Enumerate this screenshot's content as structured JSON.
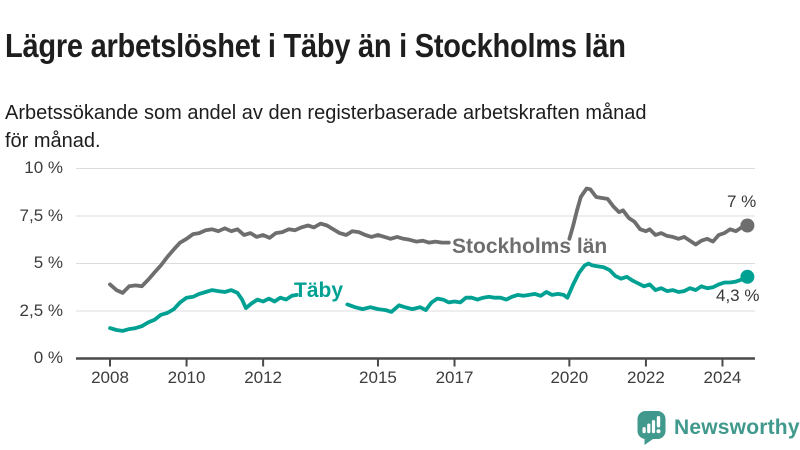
{
  "header": {
    "title": "Lägre arbetslöshet i Täby än i Stockholms län",
    "subtitle": "Arbetssökande som andel av den registerbaserade arbetskraften månad för månad.",
    "subtitle_lines": [
      "Arbetssökande som andel av den registerbaserade arbetskraften månad",
      "för månad."
    ]
  },
  "colors": {
    "taby_line": "#00a193",
    "stockholm_line": "#6e6e6e",
    "grid": "#dcdcdc",
    "axis": "#4a4a4a",
    "tick_text": "#3d3d3d",
    "end_label_text": "#383838",
    "title_text": "#1e1e1e",
    "brand_teal": "#41998d"
  },
  "chart_data": {
    "type": "line",
    "title": "Lägre arbetslöshet i Täby än i Stockholms län",
    "xlabel": "",
    "ylabel": "",
    "unit": "%",
    "grid": true,
    "ylim": [
      0,
      10
    ],
    "xlim": [
      2007.9,
      2025.1
    ],
    "y_ticks": [
      {
        "value": 10,
        "label": "10 %"
      },
      {
        "value": 7.5,
        "label": "7,5 %"
      },
      {
        "value": 5,
        "label": "5 %"
      },
      {
        "value": 2.5,
        "label": "2,5 %"
      },
      {
        "value": 0,
        "label": "0 %"
      }
    ],
    "x_ticks": [
      {
        "value": 2008,
        "label": "2008"
      },
      {
        "value": 2010,
        "label": "2010"
      },
      {
        "value": 2012,
        "label": "2012"
      },
      {
        "value": 2015,
        "label": "2015"
      },
      {
        "value": 2017,
        "label": "2017"
      },
      {
        "value": 2020,
        "label": "2020"
      },
      {
        "value": 2022,
        "label": "2022"
      },
      {
        "value": 2024,
        "label": "2024"
      }
    ],
    "series": [
      {
        "id": "stockholm",
        "name": "Stockholms län",
        "color": "#6e6e6e",
        "end_label": "7 %",
        "end_value": 7.0,
        "segments": [
          [
            [
              2008.0,
              3.9
            ],
            [
              2008.17,
              3.6
            ],
            [
              2008.33,
              3.45
            ],
            [
              2008.5,
              3.8
            ],
            [
              2008.67,
              3.85
            ],
            [
              2008.83,
              3.8
            ],
            [
              2009.0,
              4.15
            ],
            [
              2009.17,
              4.55
            ],
            [
              2009.33,
              4.9
            ],
            [
              2009.5,
              5.35
            ],
            [
              2009.67,
              5.75
            ],
            [
              2009.83,
              6.1
            ],
            [
              2010.0,
              6.3
            ],
            [
              2010.17,
              6.55
            ],
            [
              2010.33,
              6.6
            ],
            [
              2010.5,
              6.75
            ],
            [
              2010.67,
              6.8
            ],
            [
              2010.83,
              6.7
            ],
            [
              2011.0,
              6.85
            ],
            [
              2011.17,
              6.7
            ],
            [
              2011.33,
              6.8
            ],
            [
              2011.5,
              6.5
            ],
            [
              2011.67,
              6.6
            ],
            [
              2011.83,
              6.4
            ],
            [
              2012.0,
              6.5
            ],
            [
              2012.17,
              6.35
            ],
            [
              2012.33,
              6.6
            ],
            [
              2012.5,
              6.65
            ],
            [
              2012.67,
              6.8
            ],
            [
              2012.83,
              6.75
            ],
            [
              2013.0,
              6.9
            ],
            [
              2013.17,
              7.0
            ],
            [
              2013.33,
              6.9
            ],
            [
              2013.5,
              7.1
            ],
            [
              2013.67,
              7.0
            ],
            [
              2013.83,
              6.8
            ],
            [
              2014.0,
              6.6
            ],
            [
              2014.17,
              6.5
            ],
            [
              2014.33,
              6.7
            ],
            [
              2014.5,
              6.65
            ],
            [
              2014.67,
              6.5
            ],
            [
              2014.83,
              6.4
            ],
            [
              2015.0,
              6.5
            ],
            [
              2015.17,
              6.4
            ],
            [
              2015.33,
              6.3
            ],
            [
              2015.5,
              6.4
            ],
            [
              2015.67,
              6.3
            ],
            [
              2015.83,
              6.25
            ],
            [
              2016.0,
              6.15
            ],
            [
              2016.17,
              6.2
            ],
            [
              2016.33,
              6.1
            ],
            [
              2016.5,
              6.15
            ],
            [
              2016.67,
              6.1
            ],
            [
              2016.85,
              6.1
            ]
          ],
          [
            [
              2020.0,
              6.3
            ],
            [
              2020.1,
              7.0
            ],
            [
              2020.2,
              7.8
            ],
            [
              2020.3,
              8.5
            ],
            [
              2020.45,
              8.95
            ],
            [
              2020.55,
              8.9
            ],
            [
              2020.7,
              8.5
            ],
            [
              2020.85,
              8.45
            ],
            [
              2021.0,
              8.4
            ],
            [
              2021.15,
              8.0
            ],
            [
              2021.3,
              7.7
            ],
            [
              2021.4,
              7.8
            ],
            [
              2021.55,
              7.4
            ],
            [
              2021.7,
              7.2
            ],
            [
              2021.85,
              6.8
            ],
            [
              2022.0,
              6.7
            ],
            [
              2022.1,
              6.8
            ],
            [
              2022.25,
              6.5
            ],
            [
              2022.4,
              6.6
            ],
            [
              2022.55,
              6.45
            ],
            [
              2022.7,
              6.4
            ],
            [
              2022.85,
              6.3
            ],
            [
              2023.0,
              6.4
            ],
            [
              2023.15,
              6.2
            ],
            [
              2023.3,
              6.0
            ],
            [
              2023.45,
              6.2
            ],
            [
              2023.6,
              6.3
            ],
            [
              2023.75,
              6.15
            ],
            [
              2023.9,
              6.5
            ],
            [
              2024.05,
              6.6
            ],
            [
              2024.2,
              6.8
            ],
            [
              2024.35,
              6.7
            ],
            [
              2024.5,
              6.9
            ],
            [
              2024.65,
              7.0
            ]
          ]
        ]
      },
      {
        "id": "taby",
        "name": "Täby",
        "color": "#00a193",
        "end_label": "4,3 %",
        "end_value": 4.3,
        "segments": [
          [
            [
              2008.0,
              1.6
            ],
            [
              2008.17,
              1.5
            ],
            [
              2008.33,
              1.45
            ],
            [
              2008.5,
              1.55
            ],
            [
              2008.67,
              1.6
            ],
            [
              2008.83,
              1.7
            ],
            [
              2009.0,
              1.9
            ],
            [
              2009.17,
              2.05
            ],
            [
              2009.33,
              2.3
            ],
            [
              2009.5,
              2.4
            ],
            [
              2009.67,
              2.6
            ],
            [
              2009.83,
              2.95
            ],
            [
              2010.0,
              3.2
            ],
            [
              2010.17,
              3.25
            ],
            [
              2010.33,
              3.4
            ],
            [
              2010.5,
              3.5
            ],
            [
              2010.67,
              3.6
            ],
            [
              2010.83,
              3.55
            ],
            [
              2011.0,
              3.5
            ],
            [
              2011.17,
              3.6
            ],
            [
              2011.33,
              3.45
            ],
            [
              2011.45,
              3.1
            ],
            [
              2011.55,
              2.65
            ],
            [
              2011.7,
              2.9
            ],
            [
              2011.85,
              3.1
            ],
            [
              2012.0,
              3.0
            ],
            [
              2012.15,
              3.15
            ],
            [
              2012.3,
              3.0
            ],
            [
              2012.45,
              3.2
            ],
            [
              2012.6,
              3.1
            ],
            [
              2012.75,
              3.3
            ],
            [
              2012.88,
              3.35
            ]
          ],
          [
            [
              2014.2,
              2.85
            ],
            [
              2014.4,
              2.7
            ],
            [
              2014.6,
              2.6
            ],
            [
              2014.8,
              2.7
            ],
            [
              2015.0,
              2.6
            ],
            [
              2015.2,
              2.55
            ],
            [
              2015.35,
              2.45
            ],
            [
              2015.55,
              2.8
            ],
            [
              2015.7,
              2.7
            ],
            [
              2015.9,
              2.6
            ],
            [
              2016.1,
              2.7
            ],
            [
              2016.25,
              2.55
            ],
            [
              2016.4,
              2.95
            ],
            [
              2016.55,
              3.15
            ],
            [
              2016.7,
              3.1
            ],
            [
              2016.85,
              2.95
            ],
            [
              2017.0,
              3.0
            ],
            [
              2017.15,
              2.95
            ],
            [
              2017.3,
              3.2
            ],
            [
              2017.45,
              3.2
            ],
            [
              2017.6,
              3.1
            ],
            [
              2017.75,
              3.2
            ],
            [
              2017.9,
              3.25
            ],
            [
              2018.05,
              3.2
            ],
            [
              2018.2,
              3.2
            ],
            [
              2018.35,
              3.1
            ],
            [
              2018.5,
              3.25
            ],
            [
              2018.65,
              3.35
            ],
            [
              2018.8,
              3.3
            ],
            [
              2018.95,
              3.35
            ],
            [
              2019.1,
              3.4
            ],
            [
              2019.25,
              3.3
            ],
            [
              2019.4,
              3.5
            ],
            [
              2019.55,
              3.35
            ],
            [
              2019.7,
              3.4
            ],
            [
              2019.85,
              3.35
            ],
            [
              2019.95,
              3.2
            ],
            [
              2020.1,
              3.9
            ],
            [
              2020.25,
              4.5
            ],
            [
              2020.4,
              4.9
            ],
            [
              2020.5,
              5.0
            ],
            [
              2020.6,
              4.9
            ],
            [
              2020.75,
              4.85
            ],
            [
              2020.9,
              4.8
            ],
            [
              2021.05,
              4.65
            ],
            [
              2021.2,
              4.35
            ],
            [
              2021.35,
              4.2
            ],
            [
              2021.5,
              4.3
            ],
            [
              2021.65,
              4.1
            ],
            [
              2021.8,
              3.95
            ],
            [
              2021.95,
              3.8
            ],
            [
              2022.1,
              3.9
            ],
            [
              2022.25,
              3.6
            ],
            [
              2022.4,
              3.7
            ],
            [
              2022.55,
              3.55
            ],
            [
              2022.7,
              3.6
            ],
            [
              2022.85,
              3.5
            ],
            [
              2023.0,
              3.55
            ],
            [
              2023.15,
              3.7
            ],
            [
              2023.3,
              3.6
            ],
            [
              2023.45,
              3.8
            ],
            [
              2023.6,
              3.7
            ],
            [
              2023.75,
              3.75
            ],
            [
              2023.9,
              3.9
            ],
            [
              2024.05,
              4.0
            ],
            [
              2024.2,
              4.0
            ],
            [
              2024.35,
              4.05
            ],
            [
              2024.5,
              4.15
            ],
            [
              2024.65,
              4.3
            ]
          ]
        ]
      }
    ],
    "legend_position": "inline-line-labels"
  },
  "footer": {
    "brand": "Newsworthy"
  }
}
